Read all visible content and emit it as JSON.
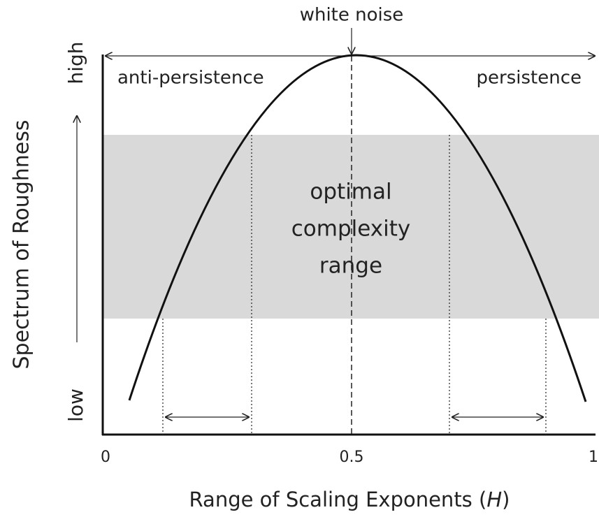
{
  "header": {
    "top_label": "white noise"
  },
  "regions": {
    "left": "anti-persistence",
    "right": "persistence"
  },
  "band": {
    "lines": [
      "optimal",
      "complexity",
      "range"
    ]
  },
  "y_axis": {
    "label": "Spectrum of Roughness",
    "high": "high",
    "low": "low"
  },
  "x_axis": {
    "ticks": [
      "0",
      "0.5",
      "1"
    ],
    "label_prefix": "Range of Scaling Exponents (",
    "label_var": "H",
    "label_suffix": ")"
  }
}
